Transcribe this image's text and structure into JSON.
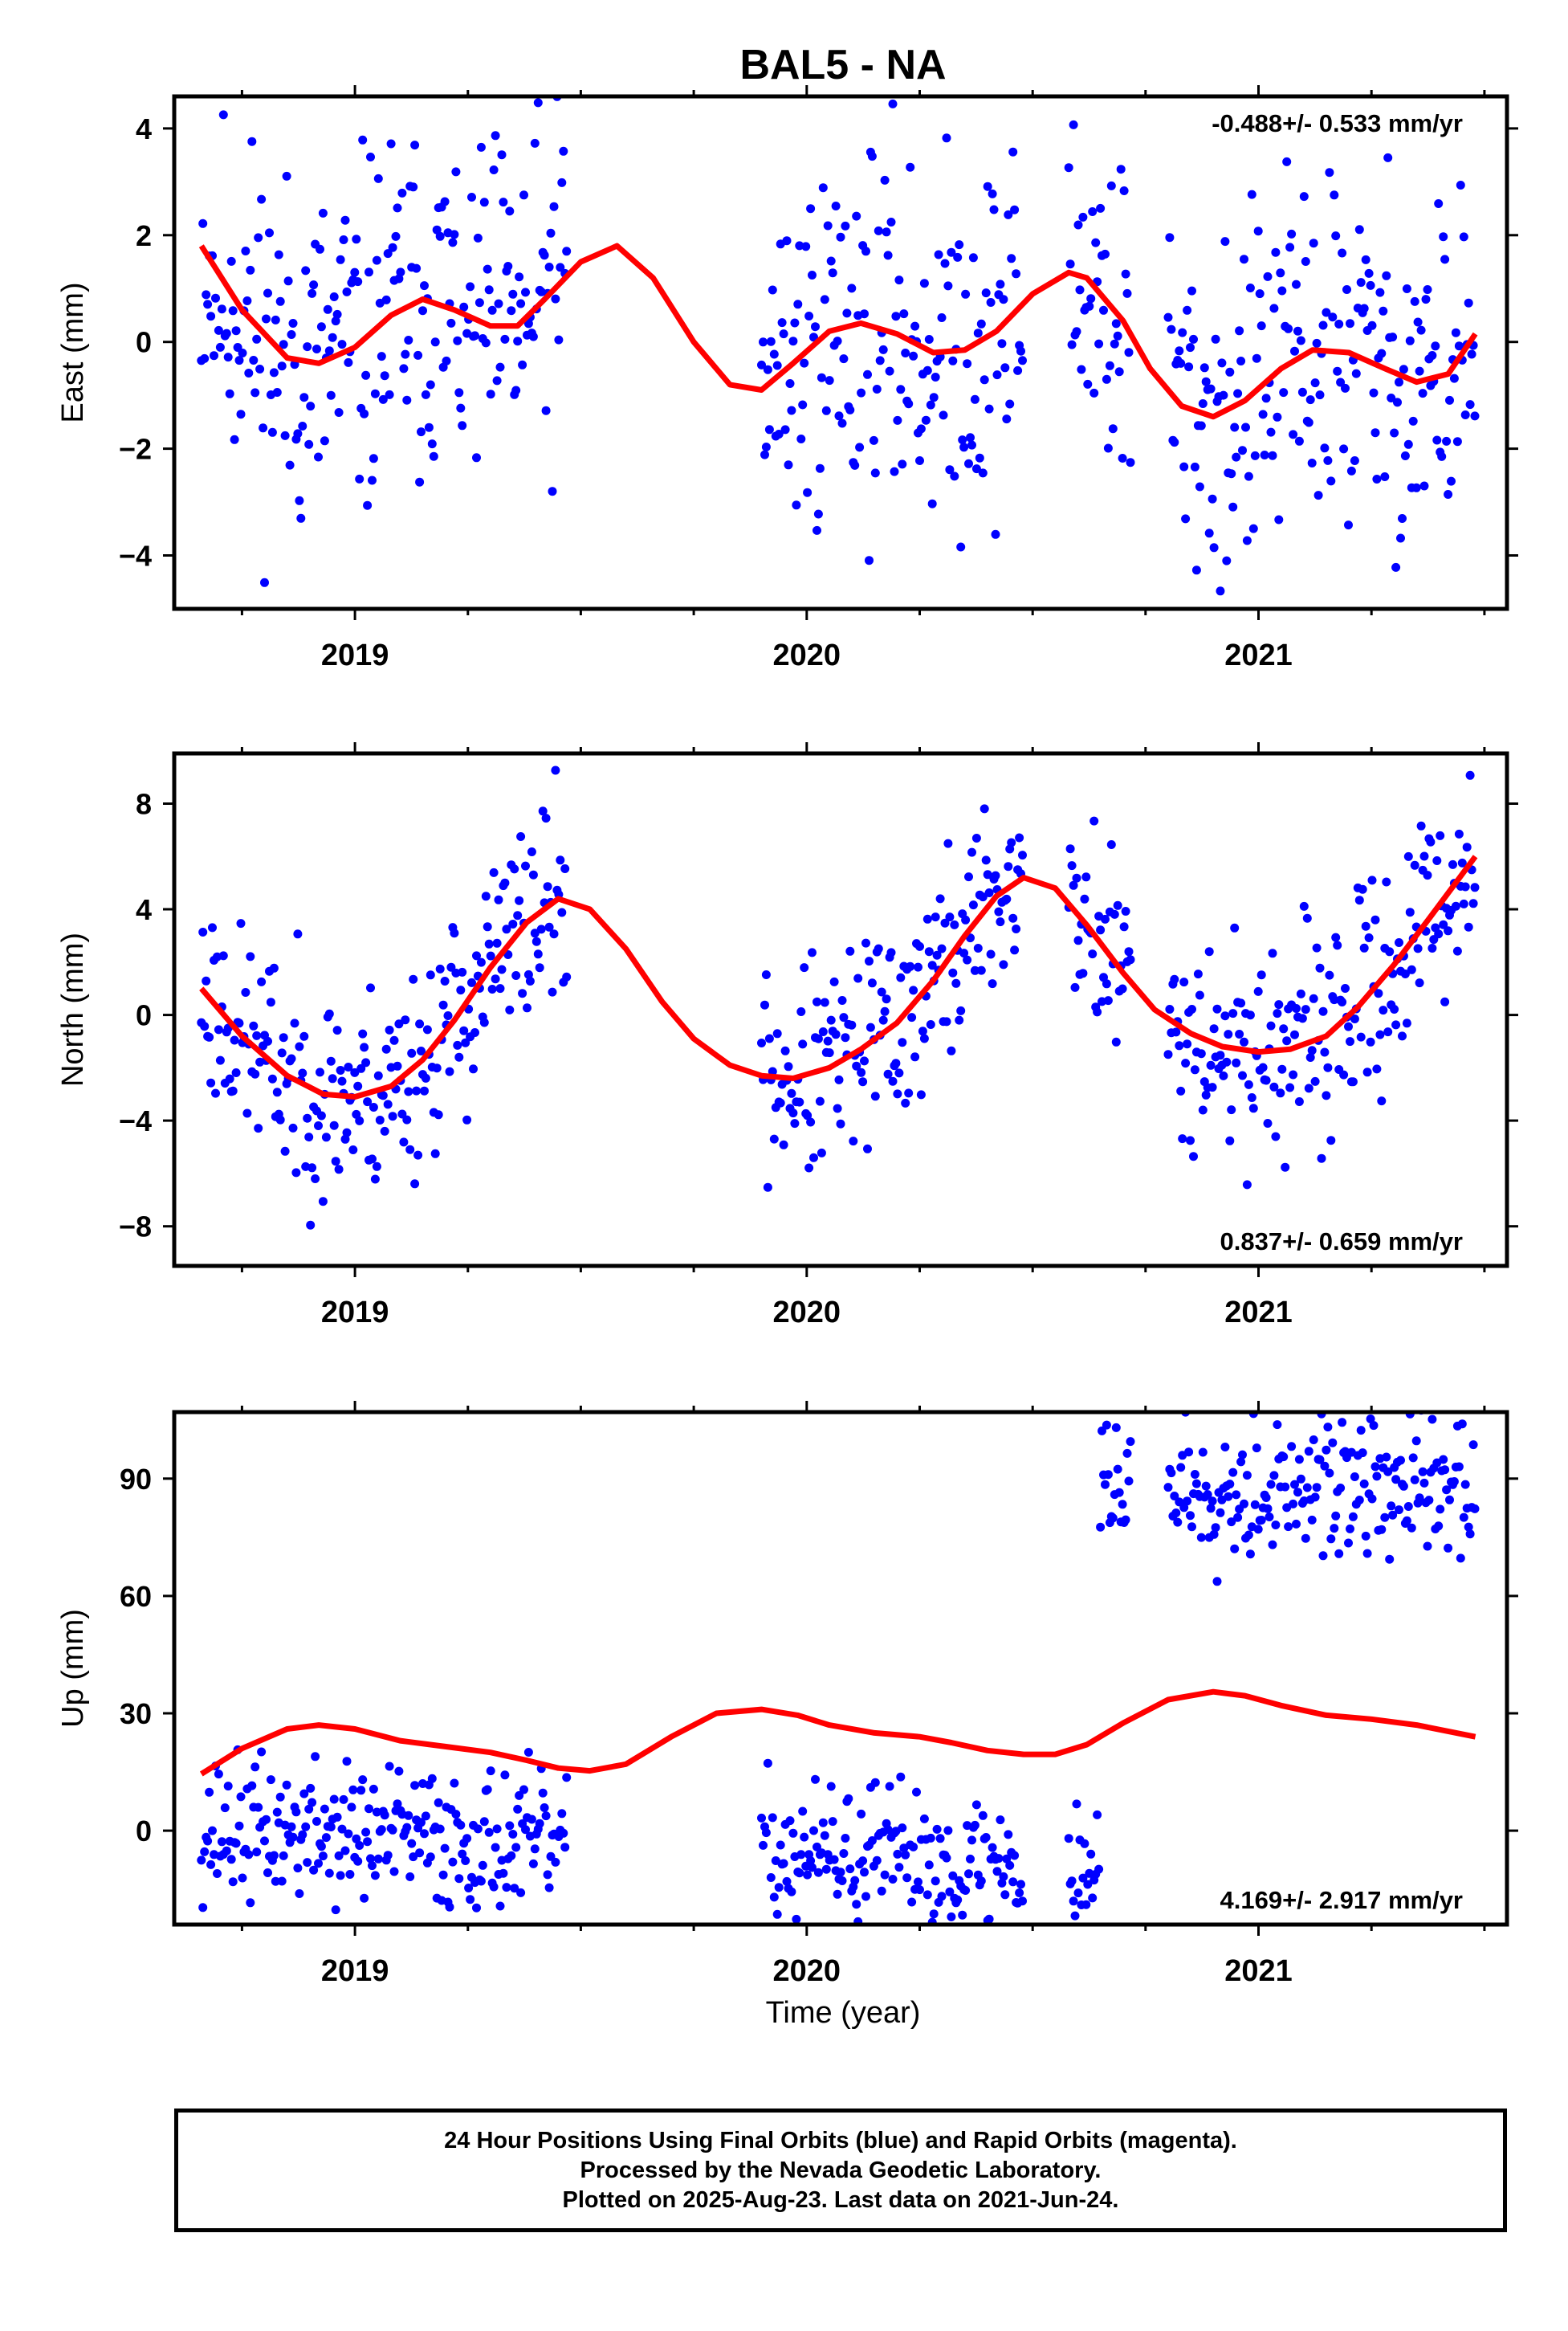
{
  "title": "BAL5 - NA",
  "xlabel": "Time (year)",
  "colors": {
    "points": "#0000ff",
    "fit": "#ff0000",
    "axis": "#000000"
  },
  "footer": {
    "line1": "24 Hour Positions Using Final Orbits (blue) and Rapid Orbits (magenta).",
    "line2": "Processed by the Nevada Geodetic Laboratory.",
    "line3": "Plotted on 2025-Aug-23. Last data on 2021-Jun-24."
  },
  "chart_data": [
    {
      "type": "scatter",
      "ylabel": "East (mm)",
      "rate": "-0.488+/- 0.533 mm/yr",
      "rate_position": "top-right",
      "xlim": [
        2018.6,
        2021.55
      ],
      "ylim": [
        -5,
        4.6
      ],
      "xticks": [
        2019,
        2020,
        2021
      ],
      "yticks": [
        -4,
        -2,
        0,
        2,
        4
      ],
      "y_tick_labels": [
        "−4",
        "−2",
        "0",
        "2",
        "4"
      ],
      "segments": [
        [
          2018.66,
          2019.47
        ],
        [
          2019.9,
          2020.48
        ],
        [
          2020.58,
          2020.72
        ],
        [
          2020.8,
          2021.48
        ]
      ],
      "spread": 1.7,
      "seed": 11,
      "fit": {
        "x": [
          2018.66,
          2018.75,
          2018.85,
          2018.92,
          2019.0,
          2019.08,
          2019.15,
          2019.22,
          2019.3,
          2019.36,
          2019.42,
          2019.5,
          2019.58,
          2019.66,
          2019.75,
          2019.83,
          2019.9,
          2019.97,
          2020.05,
          2020.12,
          2020.2,
          2020.28,
          2020.35,
          2020.42,
          2020.5,
          2020.58,
          2020.62,
          2020.7,
          2020.76,
          2020.83,
          2020.9,
          2020.97,
          2021.05,
          2021.12,
          2021.2,
          2021.28,
          2021.35,
          2021.42,
          2021.48
        ],
        "y": [
          1.8,
          0.6,
          -0.3,
          -0.4,
          -0.1,
          0.5,
          0.8,
          0.6,
          0.3,
          0.3,
          0.8,
          1.5,
          1.8,
          1.2,
          0.0,
          -0.8,
          -0.9,
          -0.4,
          0.2,
          0.35,
          0.15,
          -0.2,
          -0.15,
          0.2,
          0.9,
          1.3,
          1.2,
          0.4,
          -0.5,
          -1.2,
          -1.4,
          -1.1,
          -0.5,
          -0.15,
          -0.2,
          -0.5,
          -0.75,
          -0.6,
          0.15
        ]
      }
    },
    {
      "type": "scatter",
      "ylabel": "North (mm)",
      "rate": "0.837+/- 0.659 mm/yr",
      "rate_position": "bottom-right",
      "xlim": [
        2018.6,
        2021.55
      ],
      "ylim": [
        -9.5,
        9.9
      ],
      "xticks": [
        2019,
        2020,
        2021
      ],
      "yticks": [
        -8,
        -4,
        0,
        4,
        8
      ],
      "y_tick_labels": [
        "−8",
        "−4",
        "0",
        "4",
        "8"
      ],
      "segments": [
        [
          2018.66,
          2019.47
        ],
        [
          2019.9,
          2020.48
        ],
        [
          2020.58,
          2020.72
        ],
        [
          2020.8,
          2021.48
        ]
      ],
      "spread": 2.0,
      "seed": 23,
      "fit": {
        "x": [
          2018.66,
          2018.75,
          2018.85,
          2018.93,
          2019.0,
          2019.08,
          2019.15,
          2019.22,
          2019.3,
          2019.38,
          2019.45,
          2019.52,
          2019.6,
          2019.68,
          2019.75,
          2019.83,
          2019.9,
          2019.97,
          2020.05,
          2020.12,
          2020.2,
          2020.28,
          2020.35,
          2020.42,
          2020.48,
          2020.55,
          2020.62,
          2020.7,
          2020.77,
          2020.85,
          2020.92,
          2021.0,
          2021.07,
          2021.15,
          2021.22,
          2021.3,
          2021.38,
          2021.48
        ],
        "y": [
          1.0,
          -0.8,
          -2.3,
          -3.0,
          -3.1,
          -2.7,
          -1.7,
          -0.2,
          1.8,
          3.5,
          4.4,
          4.0,
          2.5,
          0.5,
          -0.9,
          -1.9,
          -2.3,
          -2.4,
          -2.0,
          -1.3,
          -0.3,
          1.3,
          3.0,
          4.5,
          5.2,
          4.8,
          3.4,
          1.6,
          0.2,
          -0.7,
          -1.2,
          -1.4,
          -1.3,
          -0.8,
          0.3,
          1.9,
          3.7,
          6.0
        ]
      }
    },
    {
      "type": "scatter",
      "ylabel": "Up (mm)",
      "rate": "4.169+/- 2.917 mm/yr",
      "rate_position": "bottom-right",
      "xlim": [
        2018.6,
        2021.55
      ],
      "ylim": [
        -24,
        107
      ],
      "xticks": [
        2019,
        2020,
        2021
      ],
      "yticks": [
        0,
        30,
        60,
        90
      ],
      "y_tick_labels": [
        "0",
        "30",
        "60",
        "90"
      ],
      "segments": [
        [
          2018.66,
          2019.47
        ],
        [
          2019.9,
          2020.48
        ],
        [
          2020.58,
          2020.72
        ],
        [
          2020.8,
          2021.48
        ]
      ],
      "offset": {
        "after": 2020.65,
        "value": 88
      },
      "spread": 9,
      "seed": 37,
      "fit": {
        "x": [
          2018.66,
          2018.75,
          2018.85,
          2018.92,
          2019.0,
          2019.1,
          2019.2,
          2019.3,
          2019.38,
          2019.45,
          2019.52,
          2019.6,
          2019.7,
          2019.8,
          2019.9,
          2019.98,
          2020.05,
          2020.15,
          2020.25,
          2020.32,
          2020.4,
          2020.48,
          2020.55,
          2020.62,
          2020.7,
          2020.8,
          2020.9,
          2020.97,
          2021.05,
          2021.15,
          2021.25,
          2021.35,
          2021.48
        ],
        "y": [
          14.5,
          21,
          26,
          27,
          26,
          23,
          21.5,
          20,
          18,
          16,
          15.3,
          17,
          24,
          30,
          31,
          29.5,
          27,
          25,
          24,
          22.5,
          20.5,
          19.5,
          19.5,
          22,
          27.5,
          33.5,
          35.5,
          34.5,
          32,
          29.5,
          28.5,
          27,
          24
        ]
      }
    }
  ]
}
